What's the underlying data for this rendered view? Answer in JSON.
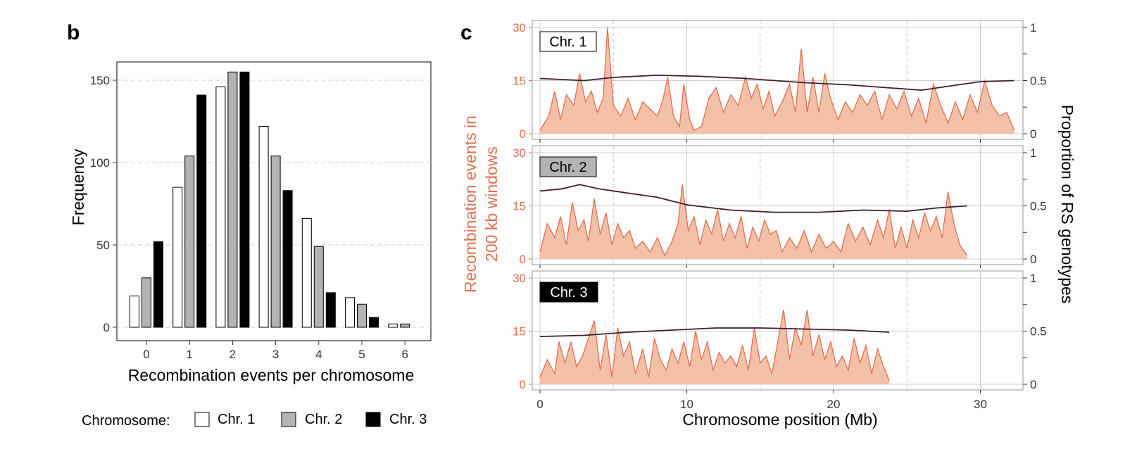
{
  "colors": {
    "chr1_fill": "#ffffff",
    "chr2_fill": "#b3b3b3",
    "chr3_fill": "#000000",
    "bar_stroke": "#000000",
    "recomb_line": "#e07050",
    "recomb_fill": "#f4c0a8",
    "proportion_line": "#3a2030",
    "grid": "#cfcfcf"
  },
  "chart_data": [
    {
      "panel": "b",
      "type": "bar",
      "xlabel": "Recombination events per chromosome",
      "ylabel": "Frequency",
      "categories": [
        "0",
        "1",
        "2",
        "3",
        "4",
        "5",
        "6"
      ],
      "yticks": [
        "0",
        "50",
        "100",
        "150"
      ],
      "ylim": [
        0,
        163
      ],
      "grid": "horizontal dashed",
      "legend": {
        "title": "Chromosome:",
        "placement": "bottom",
        "entries": [
          "Chr. 1",
          "Chr. 2",
          "Chr. 3"
        ]
      },
      "series": [
        {
          "name": "Chr. 1",
          "values": [
            19,
            85,
            146,
            122,
            66,
            18,
            2
          ]
        },
        {
          "name": "Chr. 2",
          "values": [
            30,
            104,
            155,
            104,
            49,
            14,
            2
          ]
        },
        {
          "name": "Chr. 3",
          "values": [
            52,
            141,
            155,
            83,
            21,
            6,
            0
          ]
        }
      ]
    },
    {
      "panel": "c",
      "type": "area",
      "xlabel": "Chromosome position (Mb)",
      "ylabel_left": "Recombination events in 200 kb windows",
      "ylabel_right": "Proportion of RS genotypes",
      "xticks": [
        "0",
        "10",
        "20",
        "30"
      ],
      "xlim": [
        -0.5,
        33
      ],
      "ylim_left": [
        0,
        30
      ],
      "ylim_right": [
        0,
        1
      ],
      "yticks_left": [
        "0",
        "15",
        "30"
      ],
      "yticks_right": [
        "0",
        "0.5",
        "1"
      ],
      "facets": [
        {
          "label": "Chr. 1",
          "length_mb": 32.3,
          "recomb_peaks": [
            [
              0,
              1
            ],
            [
              0.6,
              5
            ],
            [
              1,
              12
            ],
            [
              1.4,
              4
            ],
            [
              1.8,
              11
            ],
            [
              2.3,
              8
            ],
            [
              2.7,
              17
            ],
            [
              3.1,
              9
            ],
            [
              3.5,
              12
            ],
            [
              3.9,
              6
            ],
            [
              4.3,
              10
            ],
            [
              4.6,
              30
            ],
            [
              5,
              8
            ],
            [
              5.5,
              5
            ],
            [
              6,
              10
            ],
            [
              6.5,
              4
            ],
            [
              7,
              9
            ],
            [
              7.5,
              7
            ],
            [
              8,
              5
            ],
            [
              8.4,
              10
            ],
            [
              8.7,
              16
            ],
            [
              9.1,
              5
            ],
            [
              9.5,
              2
            ],
            [
              9.8,
              14
            ],
            [
              10.2,
              4
            ],
            [
              10.5,
              1
            ],
            [
              11,
              2
            ],
            [
              11.5,
              10
            ],
            [
              12,
              13
            ],
            [
              12.5,
              6
            ],
            [
              13,
              11
            ],
            [
              13.5,
              8
            ],
            [
              14,
              16
            ],
            [
              14.4,
              10
            ],
            [
              14.8,
              14
            ],
            [
              15.2,
              7
            ],
            [
              15.6,
              12
            ],
            [
              16,
              5
            ],
            [
              16.5,
              9
            ],
            [
              17,
              14
            ],
            [
              17.4,
              6
            ],
            [
              17.8,
              24
            ],
            [
              18.2,
              6
            ],
            [
              18.6,
              16
            ],
            [
              19,
              6
            ],
            [
              19.4,
              17
            ],
            [
              19.8,
              10
            ],
            [
              20.3,
              4
            ],
            [
              20.8,
              9
            ],
            [
              21.3,
              6
            ],
            [
              21.8,
              11
            ],
            [
              22.3,
              8
            ],
            [
              22.8,
              12
            ],
            [
              23.3,
              4
            ],
            [
              23.8,
              11
            ],
            [
              24.3,
              7
            ],
            [
              24.8,
              12
            ],
            [
              25.3,
              5
            ],
            [
              25.8,
              10
            ],
            [
              26.3,
              3
            ],
            [
              26.8,
              14
            ],
            [
              27.3,
              8
            ],
            [
              27.8,
              3
            ],
            [
              28.3,
              9
            ],
            [
              28.8,
              4
            ],
            [
              29.3,
              11
            ],
            [
              29.8,
              6
            ],
            [
              30.3,
              15
            ],
            [
              30.8,
              8
            ],
            [
              31.3,
              5
            ],
            [
              31.8,
              6
            ],
            [
              32.3,
              1
            ]
          ],
          "proportion": [
            [
              0,
              0.52
            ],
            [
              3,
              0.5
            ],
            [
              5,
              0.53
            ],
            [
              8,
              0.55
            ],
            [
              11,
              0.54
            ],
            [
              14,
              0.52
            ],
            [
              18,
              0.48
            ],
            [
              21,
              0.46
            ],
            [
              24,
              0.43
            ],
            [
              26,
              0.41
            ],
            [
              28,
              0.45
            ],
            [
              30,
              0.49
            ],
            [
              32.3,
              0.5
            ]
          ]
        },
        {
          "label": "Chr. 2",
          "length_mb": 29.1,
          "recomb_peaks": [
            [
              0,
              2
            ],
            [
              0.5,
              10
            ],
            [
              1,
              6
            ],
            [
              1.4,
              12
            ],
            [
              1.8,
              4
            ],
            [
              2.2,
              16
            ],
            [
              2.6,
              8
            ],
            [
              3,
              11
            ],
            [
              3.3,
              5
            ],
            [
              3.7,
              17
            ],
            [
              4.1,
              7
            ],
            [
              4.5,
              13
            ],
            [
              4.9,
              4
            ],
            [
              5.3,
              10
            ],
            [
              5.7,
              6
            ],
            [
              6.1,
              8
            ],
            [
              6.5,
              3
            ],
            [
              7,
              5
            ],
            [
              7.5,
              2
            ],
            [
              8,
              6
            ],
            [
              8.5,
              1
            ],
            [
              9,
              5
            ],
            [
              9.4,
              10
            ],
            [
              9.7,
              21
            ],
            [
              10.1,
              8
            ],
            [
              10.5,
              12
            ],
            [
              10.9,
              4
            ],
            [
              11.3,
              11
            ],
            [
              11.7,
              7
            ],
            [
              12.1,
              14
            ],
            [
              12.5,
              5
            ],
            [
              12.9,
              10
            ],
            [
              13.3,
              6
            ],
            [
              13.7,
              12
            ],
            [
              14.1,
              3
            ],
            [
              14.5,
              9
            ],
            [
              14.9,
              5
            ],
            [
              15.3,
              11
            ],
            [
              15.7,
              7
            ],
            [
              16.1,
              8
            ],
            [
              16.5,
              2
            ],
            [
              17,
              6
            ],
            [
              17.5,
              3
            ],
            [
              18,
              8
            ],
            [
              18.5,
              2
            ],
            [
              19,
              7
            ],
            [
              19.5,
              3
            ],
            [
              20,
              5
            ],
            [
              20.5,
              2
            ],
            [
              21,
              10
            ],
            [
              21.5,
              5
            ],
            [
              22,
              9
            ],
            [
              22.5,
              4
            ],
            [
              23,
              11
            ],
            [
              23.4,
              6
            ],
            [
              23.8,
              14
            ],
            [
              24.2,
              3
            ],
            [
              24.6,
              9
            ],
            [
              25,
              3
            ],
            [
              25.4,
              11
            ],
            [
              25.8,
              6
            ],
            [
              26.2,
              13
            ],
            [
              26.6,
              8
            ],
            [
              27,
              12
            ],
            [
              27.4,
              6
            ],
            [
              27.8,
              19
            ],
            [
              28.2,
              10
            ],
            [
              28.6,
              4
            ],
            [
              29.1,
              1
            ]
          ],
          "proportion": [
            [
              0,
              0.64
            ],
            [
              1.5,
              0.66
            ],
            [
              2.7,
              0.7
            ],
            [
              4,
              0.66
            ],
            [
              6,
              0.62
            ],
            [
              8,
              0.58
            ],
            [
              10,
              0.51
            ],
            [
              13,
              0.46
            ],
            [
              16,
              0.44
            ],
            [
              19,
              0.44
            ],
            [
              22,
              0.46
            ],
            [
              25,
              0.45
            ],
            [
              27,
              0.48
            ],
            [
              29.1,
              0.5
            ]
          ]
        },
        {
          "label": "Chr. 3",
          "length_mb": 23.8,
          "recomb_peaks": [
            [
              0,
              2
            ],
            [
              0.5,
              7
            ],
            [
              1,
              3
            ],
            [
              1.3,
              12
            ],
            [
              1.7,
              6
            ],
            [
              2.1,
              12
            ],
            [
              2.5,
              5
            ],
            [
              2.9,
              8
            ],
            [
              3.3,
              13
            ],
            [
              3.7,
              18
            ],
            [
              4.1,
              4
            ],
            [
              4.5,
              14
            ],
            [
              4.9,
              2
            ],
            [
              5.3,
              16
            ],
            [
              5.7,
              8
            ],
            [
              6.1,
              12
            ],
            [
              6.5,
              3
            ],
            [
              7,
              10
            ],
            [
              7.4,
              2
            ],
            [
              7.8,
              13
            ],
            [
              8.2,
              7
            ],
            [
              8.6,
              4
            ],
            [
              9,
              10
            ],
            [
              9.4,
              6
            ],
            [
              9.8,
              12
            ],
            [
              10.2,
              5
            ],
            [
              10.6,
              15
            ],
            [
              11,
              7
            ],
            [
              11.4,
              12
            ],
            [
              11.8,
              4
            ],
            [
              12.2,
              9
            ],
            [
              12.6,
              6
            ],
            [
              13,
              8
            ],
            [
              13.4,
              5
            ],
            [
              13.8,
              11
            ],
            [
              14.2,
              4
            ],
            [
              14.6,
              16
            ],
            [
              15,
              6
            ],
            [
              15.4,
              8
            ],
            [
              15.8,
              3
            ],
            [
              16.2,
              12
            ],
            [
              16.6,
              21
            ],
            [
              17,
              7
            ],
            [
              17.4,
              16
            ],
            [
              17.8,
              11
            ],
            [
              18.2,
              21
            ],
            [
              18.6,
              8
            ],
            [
              19,
              14
            ],
            [
              19.4,
              7
            ],
            [
              19.8,
              12
            ],
            [
              20.2,
              5
            ],
            [
              20.6,
              8
            ],
            [
              21,
              4
            ],
            [
              21.4,
              13
            ],
            [
              21.8,
              6
            ],
            [
              22.2,
              11
            ],
            [
              22.6,
              3
            ],
            [
              23,
              10
            ],
            [
              23.4,
              5
            ],
            [
              23.8,
              1
            ]
          ],
          "proportion": [
            [
              0,
              0.45
            ],
            [
              3,
              0.46
            ],
            [
              6,
              0.49
            ],
            [
              9,
              0.51
            ],
            [
              12,
              0.53
            ],
            [
              15,
              0.53
            ],
            [
              18,
              0.52
            ],
            [
              21,
              0.51
            ],
            [
              23.8,
              0.49
            ]
          ]
        }
      ]
    }
  ]
}
